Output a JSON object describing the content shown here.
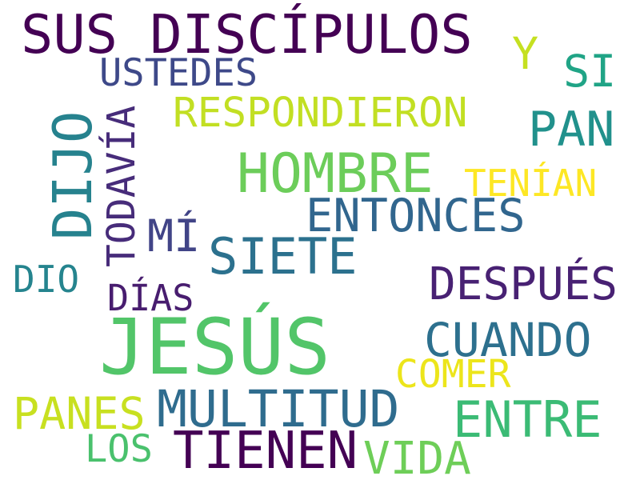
{
  "words": [
    {
      "id": "jesus",
      "text": "JESÚS",
      "color": "#52c569"
    },
    {
      "id": "sus-discipulos",
      "text": "SUS DISCÍPULOS",
      "color": "#440154"
    },
    {
      "id": "hombre",
      "text": "HOMBRE",
      "color": "#6ccd5a"
    },
    {
      "id": "dijo",
      "text": "DIJO",
      "color": "#26828e"
    },
    {
      "id": "multitud",
      "text": "MULTITUD",
      "color": "#2f6c8e"
    },
    {
      "id": "tienen",
      "text": "TIENEN",
      "color": "#440154"
    },
    {
      "id": "siete",
      "text": "SIETE",
      "color": "#2c718e"
    },
    {
      "id": "entonces",
      "text": "ENTONCES",
      "color": "#31668e"
    },
    {
      "id": "despues",
      "text": "DESPUÉS",
      "color": "#482173"
    },
    {
      "id": "respondieron",
      "text": "RESPONDIERON",
      "color": "#c2df23"
    },
    {
      "id": "pan",
      "text": "PAN",
      "color": "#21918c"
    },
    {
      "id": "cuando",
      "text": "CUANDO",
      "color": "#2d708e"
    },
    {
      "id": "entre",
      "text": "ENTRE",
      "color": "#3bbb75"
    },
    {
      "id": "panes",
      "text": "PANES",
      "color": "#c8e020"
    },
    {
      "id": "todavia",
      "text": "TODAVÍA",
      "color": "#472c7a"
    },
    {
      "id": "comer",
      "text": "COMER",
      "color": "#ece51b"
    },
    {
      "id": "vida",
      "text": "VIDA",
      "color": "#6ece58"
    },
    {
      "id": "tenian",
      "text": "TENÍAN",
      "color": "#fde725"
    },
    {
      "id": "ustedes",
      "text": "USTEDES",
      "color": "#3e4989"
    },
    {
      "id": "mi",
      "text": "MÍ",
      "color": "#414487"
    },
    {
      "id": "dias",
      "text": "DÍAS",
      "color": "#481d6f"
    },
    {
      "id": "los",
      "text": "LOS",
      "color": "#4ac16d"
    },
    {
      "id": "dio",
      "text": "DIO",
      "color": "#25848e"
    },
    {
      "id": "si",
      "text": "SI",
      "color": "#20a486"
    },
    {
      "id": "y",
      "text": "Y",
      "color": "#c5e021"
    }
  ]
}
